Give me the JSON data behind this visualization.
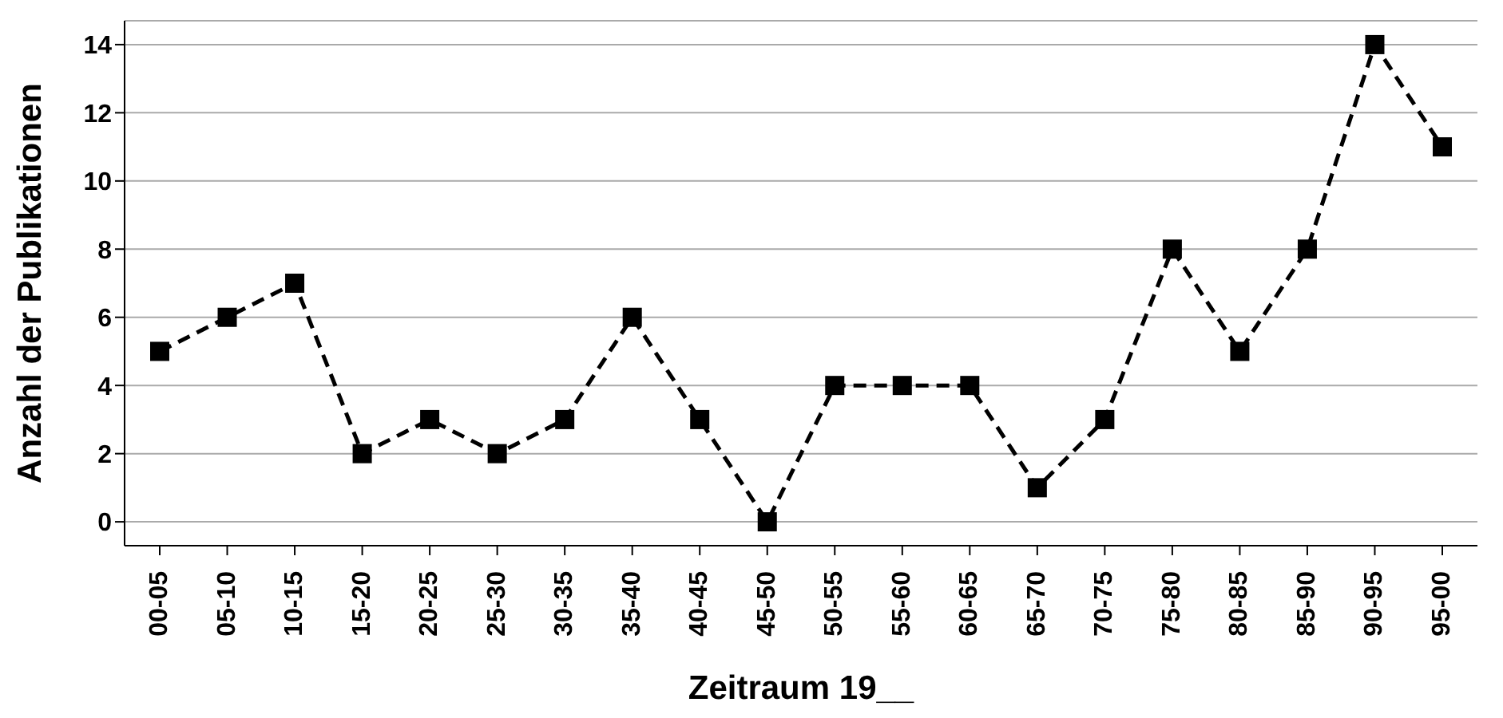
{
  "chart_data": {
    "type": "line",
    "xlabel": "Zeitraum 19__",
    "ylabel": "Anzahl der Publikationen",
    "categories": [
      "00-05",
      "05-10",
      "10-15",
      "15-20",
      "20-25",
      "25-30",
      "30-35",
      "35-40",
      "40-45",
      "45-50",
      "50-55",
      "55-60",
      "60-65",
      "65-70",
      "70-75",
      "75-80",
      "80-85",
      "85-90",
      "90-95",
      "95-00"
    ],
    "series": [
      {
        "color": "#000000",
        "values": [
          5,
          6,
          7,
          2,
          3,
          2,
          3,
          6,
          3,
          0,
          4,
          4,
          4,
          1,
          3,
          8,
          5,
          8,
          14,
          11
        ]
      }
    ],
    "ylim": [
      -0.7,
      14.7
    ],
    "yticks": [
      0,
      2,
      4,
      6,
      8,
      10,
      12,
      14
    ],
    "grid": "y",
    "legend": false,
    "marker": "square",
    "line_style": "dashed"
  }
}
